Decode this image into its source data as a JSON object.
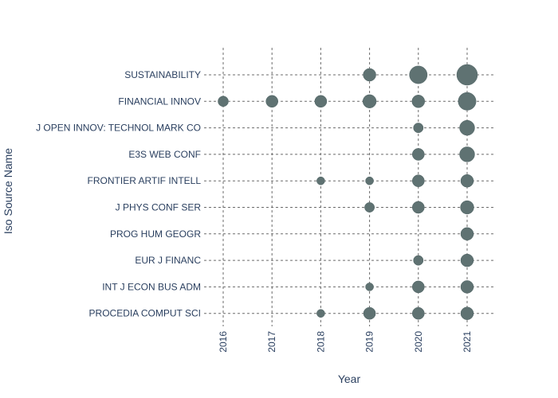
{
  "chart_data": {
    "type": "scatter",
    "subtype": "bubble",
    "xlabel": "Year",
    "ylabel": "Iso Source Name",
    "x_categories": [
      "2016",
      "2017",
      "2018",
      "2019",
      "2020",
      "2021"
    ],
    "y_categories": [
      "SUSTAINABILITY",
      "FINANCIAL INNOV",
      "J OPEN INNOV: TECHNOL MARK CO",
      "E3S WEB CONF",
      "FRONTIER ARTIF INTELL",
      "J PHYS CONF SER",
      "PROG HUM GEOGR",
      "EUR J FINANC",
      "INT J ECON BUS ADM",
      "PROCEDIA COMPUT SCI"
    ],
    "grid": "dashed",
    "marker_color": "#5f7272",
    "points": [
      {
        "x": "2019",
        "y": "SUSTAINABILITY",
        "size": 3
      },
      {
        "x": "2020",
        "y": "SUSTAINABILITY",
        "size": 8
      },
      {
        "x": "2021",
        "y": "SUSTAINABILITY",
        "size": 12
      },
      {
        "x": "2016",
        "y": "FINANCIAL INNOV",
        "size": 1.5
      },
      {
        "x": "2017",
        "y": "FINANCIAL INNOV",
        "size": 2.5
      },
      {
        "x": "2018",
        "y": "FINANCIAL INNOV",
        "size": 2.5
      },
      {
        "x": "2019",
        "y": "FINANCIAL INNOV",
        "size": 3.5
      },
      {
        "x": "2020",
        "y": "FINANCIAL INNOV",
        "size": 3
      },
      {
        "x": "2021",
        "y": "FINANCIAL INNOV",
        "size": 8
      },
      {
        "x": "2020",
        "y": "J OPEN INNOV: TECHNOL MARK CO",
        "size": 1.2
      },
      {
        "x": "2021",
        "y": "J OPEN INNOV: TECHNOL MARK CO",
        "size": 5
      },
      {
        "x": "2020",
        "y": "E3S WEB CONF",
        "size": 2.5
      },
      {
        "x": "2021",
        "y": "E3S WEB CONF",
        "size": 5
      },
      {
        "x": "2018",
        "y": "FRONTIER ARTIF INTELL",
        "size": 0.5
      },
      {
        "x": "2019",
        "y": "FRONTIER ARTIF INTELL",
        "size": 0.5
      },
      {
        "x": "2020",
        "y": "FRONTIER ARTIF INTELL",
        "size": 2.5
      },
      {
        "x": "2021",
        "y": "FRONTIER ARTIF INTELL",
        "size": 3
      },
      {
        "x": "2019",
        "y": "J PHYS CONF SER",
        "size": 1.2
      },
      {
        "x": "2020",
        "y": "J PHYS CONF SER",
        "size": 2.5
      },
      {
        "x": "2021",
        "y": "J PHYS CONF SER",
        "size": 3.5
      },
      {
        "x": "2021",
        "y": "PROG HUM GEOGR",
        "size": 3
      },
      {
        "x": "2020",
        "y": "EUR J FINANC",
        "size": 1.2
      },
      {
        "x": "2021",
        "y": "EUR J FINANC",
        "size": 3
      },
      {
        "x": "2019",
        "y": "INT J ECON BUS ADM",
        "size": 0.5
      },
      {
        "x": "2020",
        "y": "INT J ECON BUS ADM",
        "size": 2.5
      },
      {
        "x": "2021",
        "y": "INT J ECON BUS ADM",
        "size": 3
      },
      {
        "x": "2018",
        "y": "PROCEDIA COMPUT SCI",
        "size": 0.5
      },
      {
        "x": "2019",
        "y": "PROCEDIA COMPUT SCI",
        "size": 2.5
      },
      {
        "x": "2020",
        "y": "PROCEDIA COMPUT SCI",
        "size": 2.5
      },
      {
        "x": "2021",
        "y": "PROCEDIA COMPUT SCI",
        "size": 3
      }
    ]
  }
}
